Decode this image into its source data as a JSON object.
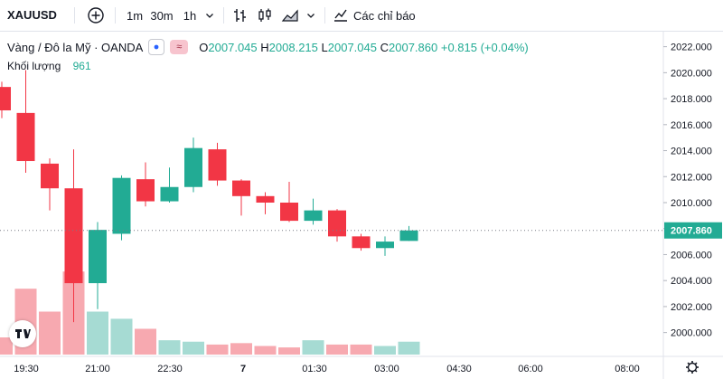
{
  "toolbar": {
    "symbol": "XAUUSD",
    "intervals": [
      "1m",
      "30m",
      "1h"
    ],
    "indicators_label": "Các chỉ báo"
  },
  "legend": {
    "title": "Vàng / Đô la Mỹ · OANDA",
    "o_key": "O",
    "o_val": "2007.045",
    "h_key": "H",
    "h_val": "2008.215",
    "l_key": "L",
    "l_val": "2007.045",
    "c_key": "C",
    "c_val": "2007.860",
    "change": "+0.815 (+0.04%)",
    "badge_text": "≈",
    "volume_label": "Khối lượng",
    "volume_value": "961"
  },
  "colors": {
    "up": "#22ab94",
    "down": "#f23645",
    "up_vol": "#a6dbd3",
    "down_vol": "#f7a9b0"
  },
  "chart_data": {
    "type": "candlestick",
    "title": "Vàng / Đô la Mỹ · OANDA",
    "ylim": [
      1999.0,
      2022.6
    ],
    "y_ticks": [
      2000,
      2002,
      2004,
      2006,
      2008,
      2010,
      2012,
      2014,
      2016,
      2018,
      2020,
      2022
    ],
    "y_tick_labels": [
      "2000.000",
      "2002.000",
      "2004.000",
      "2006.000",
      "2008.000",
      "2010.000",
      "2012.000",
      "2014.000",
      "2016.000",
      "2018.000",
      "2020.000",
      "2022.000"
    ],
    "x_tick_labels": [
      "19:30",
      "21:00",
      "22:30",
      "7",
      "01:30",
      "03:00",
      "04:30",
      "06:00",
      "08:00"
    ],
    "last_price": 2007.86,
    "last_price_label": "2007.860",
    "candles": [
      {
        "o": 2018.9,
        "h": 2019.3,
        "l": 2016.5,
        "c": 2017.1
      },
      {
        "o": 2016.9,
        "h": 2020.2,
        "l": 2012.3,
        "c": 2013.2
      },
      {
        "o": 2013.0,
        "h": 2013.4,
        "l": 2009.4,
        "c": 2011.1
      },
      {
        "o": 2011.1,
        "h": 2014.1,
        "l": 2000.8,
        "c": 2003.8
      },
      {
        "o": 2003.8,
        "h": 2008.5,
        "l": 2001.8,
        "c": 2007.9
      },
      {
        "o": 2007.6,
        "h": 2012.1,
        "l": 2007.1,
        "c": 2011.9
      },
      {
        "o": 2011.8,
        "h": 2013.1,
        "l": 2009.7,
        "c": 2010.1
      },
      {
        "o": 2010.1,
        "h": 2012.7,
        "l": 2010.0,
        "c": 2011.2
      },
      {
        "o": 2011.2,
        "h": 2015.0,
        "l": 2010.8,
        "c": 2014.2
      },
      {
        "o": 2014.1,
        "h": 2014.6,
        "l": 2011.3,
        "c": 2011.7
      },
      {
        "o": 2011.7,
        "h": 2011.8,
        "l": 2009.0,
        "c": 2010.5
      },
      {
        "o": 2010.5,
        "h": 2010.8,
        "l": 2009.1,
        "c": 2010.0
      },
      {
        "o": 2010.0,
        "h": 2011.6,
        "l": 2008.5,
        "c": 2008.6
      },
      {
        "o": 2008.6,
        "h": 2010.3,
        "l": 2008.3,
        "c": 2009.4
      },
      {
        "o": 2009.4,
        "h": 2009.5,
        "l": 2007.0,
        "c": 2007.4
      },
      {
        "o": 2007.4,
        "h": 2007.6,
        "l": 2006.3,
        "c": 2006.5
      },
      {
        "o": 2006.5,
        "h": 2007.4,
        "l": 2005.9,
        "c": 2007.0
      },
      {
        "o": 2007.05,
        "h": 2008.2,
        "l": 2007.05,
        "c": 2007.86
      }
    ],
    "volumes": [
      0.12,
      0.46,
      0.3,
      0.58,
      0.3,
      0.25,
      0.18,
      0.1,
      0.09,
      0.07,
      0.08,
      0.06,
      0.05,
      0.1,
      0.07,
      0.07,
      0.06,
      0.09
    ]
  }
}
